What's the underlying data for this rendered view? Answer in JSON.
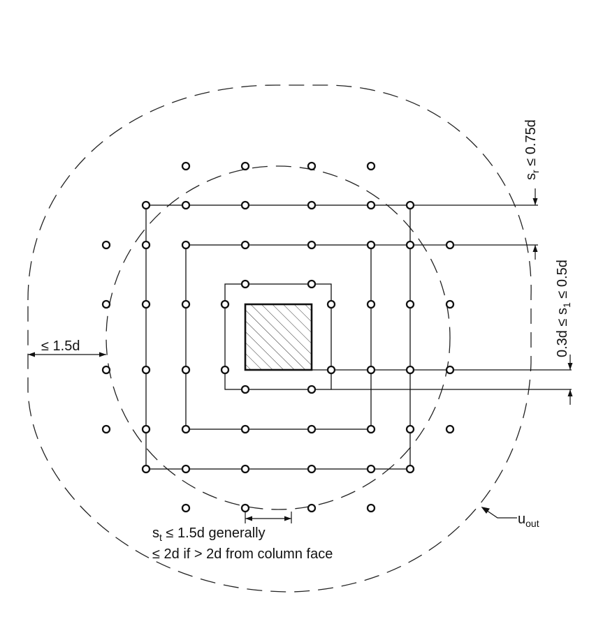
{
  "labels": {
    "sr_prefix": "s",
    "sr_sub": "r",
    "sr_rest": " ≤ 0.75d",
    "s1_prefix": "0.3d ≤ s",
    "s1_sub": "1",
    "s1_rest": " ≤ 0.5d",
    "edge": "≤ 1.5d",
    "st_prefix": "s",
    "st_sub": "t",
    "st_rest": " ≤ 1.5d generally",
    "st_line2": "≤ 2d if > 2d from column face",
    "uout_prefix": "u",
    "uout_sub": "out"
  },
  "colors": {
    "ink": "#111111",
    "background": "#ffffff"
  }
}
